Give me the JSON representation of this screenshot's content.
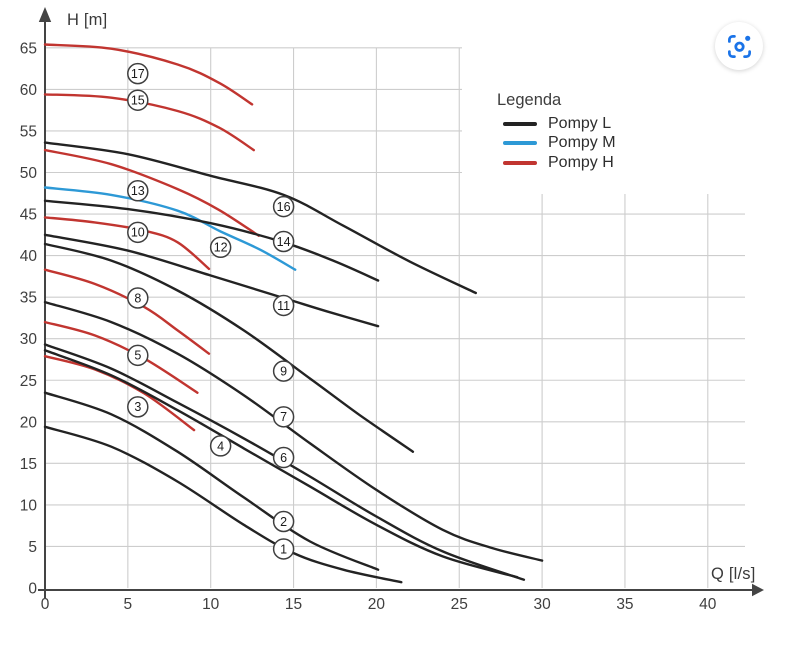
{
  "ui": {
    "lens_button": {
      "icon": "google-lens-icon",
      "color": "#1a73e8"
    }
  },
  "colors": {
    "axis": "#444444",
    "grid": "#cdcdcd",
    "tick_text": "#3f3f3f",
    "badge_stroke": "#3f3f3f",
    "badge_text": "#1c1c1c"
  },
  "chart_data": {
    "type": "line",
    "title": "",
    "xlabel": "Q [l/s]",
    "ylabel": "H [m]",
    "xlim": [
      0,
      42
    ],
    "ylim": [
      0,
      67
    ],
    "x_ticks": [
      0,
      5,
      10,
      15,
      20,
      25,
      30,
      35,
      40
    ],
    "y_ticks": [
      0,
      5,
      10,
      15,
      20,
      25,
      30,
      35,
      40,
      45,
      50,
      55,
      60,
      65
    ],
    "grid": true,
    "legend": {
      "title": "Legenda",
      "position": "top-right",
      "entries": [
        {
          "label": "Pompy L",
          "color": "#232323"
        },
        {
          "label": "Pompy M",
          "color": "#2d99d6"
        },
        {
          "label": "Pompy H",
          "color": "#c13530"
        }
      ]
    },
    "series": [
      {
        "id": 1,
        "family": "Pompy L",
        "label": {
          "q": 14.4,
          "h": 4.7
        },
        "points": [
          [
            0,
            19.4
          ],
          [
            4,
            17.0
          ],
          [
            8,
            12.8
          ],
          [
            12,
            7.6
          ],
          [
            15,
            4.2
          ],
          [
            18,
            2.2
          ],
          [
            21.5,
            0.7
          ]
        ]
      },
      {
        "id": 2,
        "family": "Pompy L",
        "label": {
          "q": 14.4,
          "h": 8.0
        },
        "points": [
          [
            0,
            23.5
          ],
          [
            4,
            20.9
          ],
          [
            8,
            16.4
          ],
          [
            12,
            10.9
          ],
          [
            16,
            5.6
          ],
          [
            20.1,
            2.2
          ]
        ]
      },
      {
        "id": 3,
        "family": "Pompy H",
        "label": {
          "q": 5.6,
          "h": 21.8
        },
        "points": [
          [
            0,
            27.9
          ],
          [
            3,
            26.3
          ],
          [
            6,
            23.4
          ],
          [
            9,
            19.0
          ]
        ]
      },
      {
        "id": 4,
        "family": "Pompy L",
        "label": {
          "q": 10.6,
          "h": 17.1
        },
        "points": [
          [
            0,
            28.6
          ],
          [
            4,
            25.6
          ],
          [
            8,
            21.4
          ],
          [
            12,
            16.8
          ],
          [
            16,
            12.2
          ],
          [
            20,
            7.6
          ],
          [
            24,
            3.8
          ],
          [
            28.5,
            1.3
          ]
        ]
      },
      {
        "id": 5,
        "family": "Pompy H",
        "label": {
          "q": 5.6,
          "h": 28.0
        },
        "points": [
          [
            0,
            32.0
          ],
          [
            3,
            30.4
          ],
          [
            6,
            27.6
          ],
          [
            9.2,
            23.5
          ]
        ]
      },
      {
        "id": 6,
        "family": "Pompy L",
        "label": {
          "q": 14.4,
          "h": 15.7
        },
        "points": [
          [
            0,
            29.3
          ],
          [
            4,
            26.4
          ],
          [
            8,
            22.3
          ],
          [
            12,
            18.0
          ],
          [
            16,
            13.4
          ],
          [
            20,
            8.6
          ],
          [
            24,
            4.4
          ],
          [
            28.9,
            1.0
          ]
        ]
      },
      {
        "id": 7,
        "family": "Pompy L",
        "label": {
          "q": 14.4,
          "h": 20.6
        },
        "points": [
          [
            0,
            34.4
          ],
          [
            4,
            32.0
          ],
          [
            8,
            28.2
          ],
          [
            12,
            23.2
          ],
          [
            16,
            17.4
          ],
          [
            20,
            11.8
          ],
          [
            24,
            7.0
          ],
          [
            27,
            4.8
          ],
          [
            30,
            3.3
          ]
        ]
      },
      {
        "id": 8,
        "family": "Pompy H",
        "label": {
          "q": 5.6,
          "h": 34.9
        },
        "points": [
          [
            0,
            38.3
          ],
          [
            3,
            36.6
          ],
          [
            6,
            33.8
          ],
          [
            8,
            31.0
          ],
          [
            9.9,
            28.2
          ]
        ]
      },
      {
        "id": 9,
        "family": "Pompy L",
        "label": {
          "q": 14.4,
          "h": 26.1
        },
        "points": [
          [
            0,
            41.4
          ],
          [
            4,
            39.4
          ],
          [
            8,
            35.8
          ],
          [
            12,
            31.0
          ],
          [
            16,
            25.2
          ],
          [
            19,
            20.8
          ],
          [
            22.2,
            16.4
          ]
        ]
      },
      {
        "id": 10,
        "family": "Pompy H",
        "label": {
          "q": 5.6,
          "h": 42.8
        },
        "points": [
          [
            0,
            44.6
          ],
          [
            3,
            44.0
          ],
          [
            6,
            43.0
          ],
          [
            8,
            41.6
          ],
          [
            9.9,
            38.4
          ]
        ]
      },
      {
        "id": 11,
        "family": "Pompy L",
        "label": {
          "q": 14.4,
          "h": 34.0
        },
        "points": [
          [
            0,
            42.5
          ],
          [
            5,
            40.6
          ],
          [
            10,
            37.6
          ],
          [
            14.4,
            34.9
          ],
          [
            17,
            33.3
          ],
          [
            20.1,
            31.5
          ]
        ]
      },
      {
        "id": 12,
        "family": "Pompy M",
        "label": {
          "q": 10.6,
          "h": 41.0
        },
        "points": [
          [
            0,
            48.2
          ],
          [
            4,
            47.3
          ],
          [
            8,
            45.4
          ],
          [
            10.6,
            42.9
          ],
          [
            13,
            40.7
          ],
          [
            15.1,
            38.3
          ]
        ]
      },
      {
        "id": 13,
        "family": "Pompy H",
        "label": {
          "q": 5.6,
          "h": 47.8
        },
        "points": [
          [
            0,
            52.7
          ],
          [
            4,
            51.0
          ],
          [
            8,
            48.0
          ],
          [
            10.5,
            45.5
          ],
          [
            12.9,
            42.4
          ]
        ]
      },
      {
        "id": 14,
        "family": "Pompy L",
        "label": {
          "q": 14.4,
          "h": 41.7
        },
        "points": [
          [
            0,
            46.6
          ],
          [
            5,
            45.6
          ],
          [
            10,
            43.9
          ],
          [
            14.4,
            41.6
          ],
          [
            17.5,
            39.3
          ],
          [
            20.1,
            37.0
          ]
        ]
      },
      {
        "id": 15,
        "family": "Pompy H",
        "label": {
          "q": 5.6,
          "h": 58.7
        },
        "points": [
          [
            0,
            59.4
          ],
          [
            4,
            59.0
          ],
          [
            8,
            57.4
          ],
          [
            10.5,
            55.4
          ],
          [
            12.6,
            52.7
          ]
        ]
      },
      {
        "id": 16,
        "family": "Pompy L",
        "label": {
          "q": 14.4,
          "h": 45.9
        },
        "points": [
          [
            0,
            53.6
          ],
          [
            5,
            52.2
          ],
          [
            10,
            49.6
          ],
          [
            14.4,
            47.3
          ],
          [
            18,
            43.6
          ],
          [
            22,
            39.3
          ],
          [
            26,
            35.5
          ]
        ]
      },
      {
        "id": 17,
        "family": "Pompy H",
        "label": {
          "q": 5.6,
          "h": 61.9
        },
        "points": [
          [
            0,
            65.4
          ],
          [
            4,
            64.9
          ],
          [
            8,
            63.0
          ],
          [
            10.5,
            60.8
          ],
          [
            12.5,
            58.2
          ]
        ]
      }
    ]
  }
}
